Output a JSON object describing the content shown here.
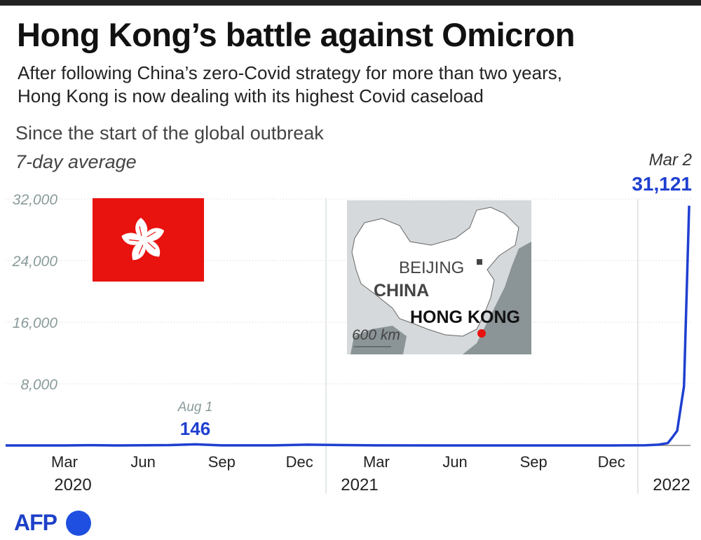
{
  "title": "Hong Kong’s battle against Omicron",
  "subtitle_lines": [
    "After following China’s zero-Covid strategy for more than two years,",
    "Hong Kong is now dealing with its highest Covid caseload"
  ],
  "colors": {
    "line": "#1e3fd0",
    "flag": "#e8120f",
    "map_land": "#b9bfc2",
    "map_sea": "#8b9497",
    "hk_marker": "#e8120f"
  },
  "map": {
    "labels": {
      "beijing": "BEIJING",
      "china": "CHINA",
      "hong_kong": "HONG KONG",
      "scale": "600 km"
    }
  },
  "flag_icon": "hong-kong-flag-bauhinia",
  "source": "AFP",
  "chart_data": {
    "type": "line",
    "heading": "Since the start of the global outbreak",
    "note": "7-day average",
    "ylim": [
      0,
      32000
    ],
    "yticks": [
      8000,
      16000,
      24000,
      32000
    ],
    "ytick_labels": [
      "8,000",
      "16,000",
      "24,000",
      "32,000"
    ],
    "grid": true,
    "xticks": [
      {
        "date": "2020-03-01",
        "label": "Mar"
      },
      {
        "date": "2020-06-01",
        "label": "Jun"
      },
      {
        "date": "2020-09-01",
        "label": "Sep"
      },
      {
        "date": "2020-12-01",
        "label": "Dec"
      },
      {
        "date": "2021-03-01",
        "label": "Mar"
      },
      {
        "date": "2021-06-01",
        "label": "Jun"
      },
      {
        "date": "2021-09-01",
        "label": "Sep"
      },
      {
        "date": "2021-12-01",
        "label": "Dec"
      }
    ],
    "years": [
      {
        "date": "2020-01-01",
        "label": "2020"
      },
      {
        "date": "2021-01-01",
        "label": "2021"
      },
      {
        "date": "2022-01-01",
        "label": "2022"
      }
    ],
    "series": [
      {
        "points": [
          [
            "2020-03-01",
            5
          ],
          [
            "2020-04-01",
            30
          ],
          [
            "2020-05-01",
            2
          ],
          [
            "2020-07-01",
            40
          ],
          [
            "2020-08-01",
            146
          ],
          [
            "2020-09-01",
            15
          ],
          [
            "2020-11-01",
            10
          ],
          [
            "2020-12-10",
            100
          ],
          [
            "2021-01-15",
            60
          ],
          [
            "2021-03-01",
            10
          ],
          [
            "2021-06-01",
            3
          ],
          [
            "2021-12-01",
            3
          ],
          [
            "2022-01-10",
            20
          ],
          [
            "2022-01-25",
            100
          ],
          [
            "2022-02-05",
            300
          ],
          [
            "2022-02-10",
            1000
          ],
          [
            "2022-02-16",
            1900
          ],
          [
            "2022-02-24",
            7700
          ],
          [
            "2022-03-02",
            31121
          ]
        ]
      }
    ],
    "annotations": [
      {
        "date": "2020-08-01",
        "value": 146,
        "date_label": "Aug 1",
        "value_label": "146"
      },
      {
        "date": "2022-03-02",
        "value": 31121,
        "date_label": "Mar 2",
        "value_label": "31,121"
      }
    ]
  }
}
